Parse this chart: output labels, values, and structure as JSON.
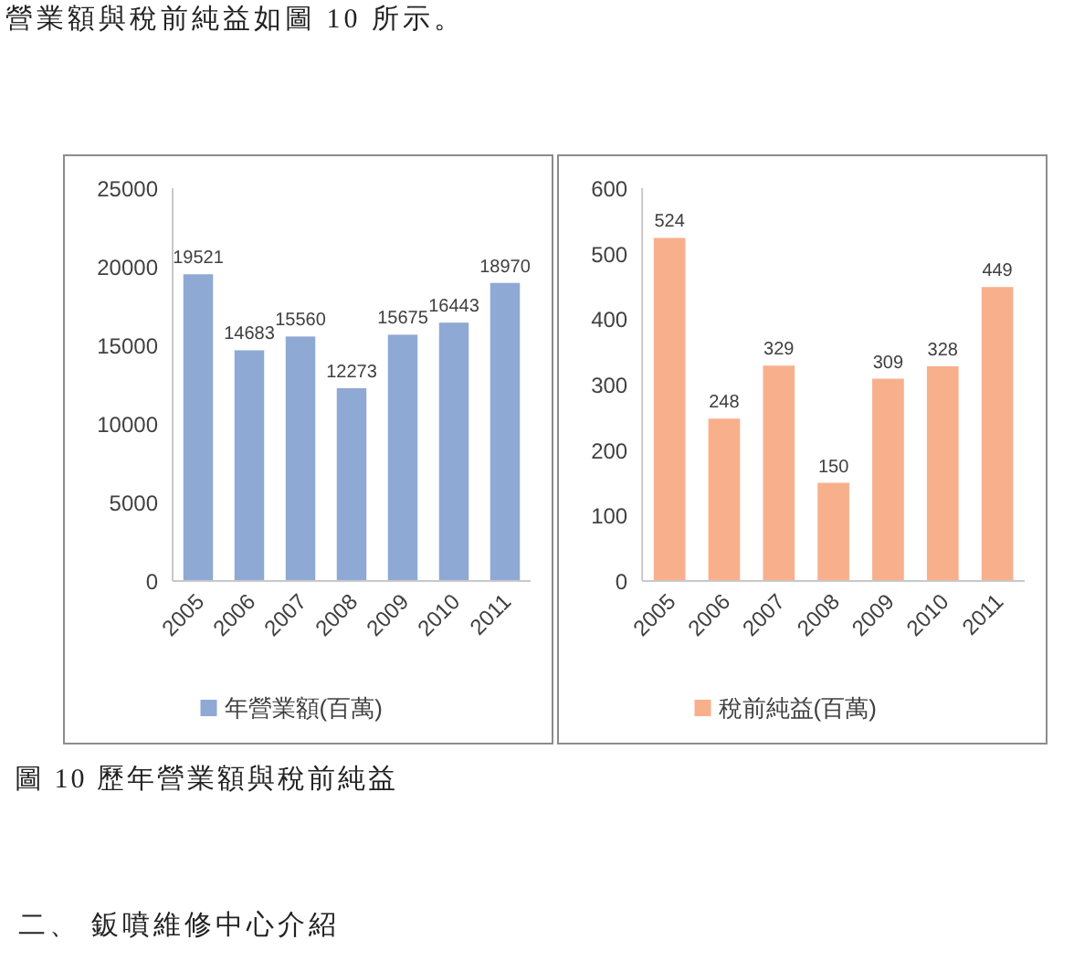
{
  "chart_data": [
    {
      "type": "bar",
      "categories": [
        "2005",
        "2006",
        "2007",
        "2008",
        "2009",
        "2010",
        "2011"
      ],
      "series": [
        {
          "name": "年營業額(百萬)",
          "color": "#8fa9d5",
          "values": [
            19521,
            14683,
            15560,
            12273,
            15675,
            16443,
            18970
          ]
        }
      ],
      "ylim": [
        0,
        25000
      ],
      "yticks": [
        0,
        5000,
        10000,
        15000,
        20000,
        25000
      ],
      "data_labels": true,
      "legend": "bottom",
      "annotations": [
        "營業額與稅前純益如圖 10 所示。",
        "圖 10 歷年營業額與稅前純益",
        "二、 鈑噴維修中心介紹"
      ]
    },
    {
      "type": "bar",
      "categories": [
        "2005",
        "2006",
        "2007",
        "2008",
        "2009",
        "2010",
        "2011"
      ],
      "series": [
        {
          "name": "稅前純益(百萬)",
          "color": "#f8b08c",
          "values": [
            524,
            248,
            329,
            150,
            309,
            328,
            449
          ]
        }
      ],
      "ylim": [
        0,
        600
      ],
      "yticks": [
        0,
        100,
        200,
        300,
        400,
        500,
        600
      ],
      "data_labels": true,
      "legend": "bottom"
    }
  ]
}
